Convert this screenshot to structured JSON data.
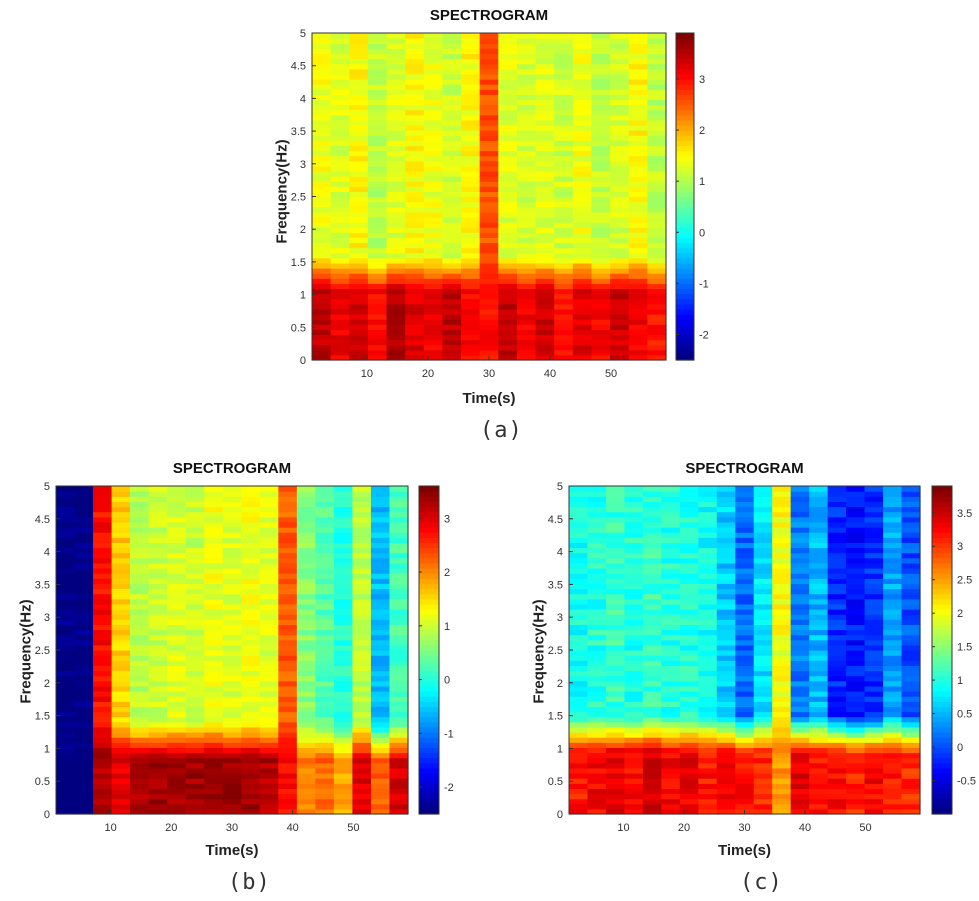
{
  "chart_data": [
    {
      "id": "a",
      "type": "heatmap",
      "title": "SPECTROGRAM",
      "xlabel": "Time(s)",
      "ylabel": "Frequency(Hz)",
      "caption": "(a)",
      "xlim": [
        1,
        59
      ],
      "ylim": [
        0,
        5
      ],
      "xticks": [
        10,
        20,
        30,
        40,
        50
      ],
      "yticks": [
        0,
        0.5,
        1,
        1.5,
        2,
        2.5,
        3,
        3.5,
        4,
        4.5,
        5
      ],
      "colorbar": {
        "range": [
          -2.5,
          3.9
        ],
        "ticks": [
          -2,
          -1,
          0,
          1,
          2,
          3
        ]
      },
      "time_bins": 19,
      "column_high_freq_values": [
        1.4,
        1.3,
        1.5,
        1.1,
        1.3,
        1.5,
        1.4,
        1.2,
        1.5,
        2.6,
        1.3,
        1.2,
        1.3,
        1.2,
        1.4,
        1.1,
        1.2,
        1.5,
        1.1
      ],
      "column_low_freq_values": [
        3.7,
        3.4,
        3.6,
        3.3,
        3.8,
        3.5,
        3.4,
        3.7,
        3.3,
        3.2,
        3.7,
        3.4,
        3.6,
        3.2,
        3.5,
        3.3,
        3.6,
        3.4,
        3.2
      ],
      "low_freq_cutoff": 1.0
    },
    {
      "id": "b",
      "type": "heatmap",
      "title": "SPECTROGRAM",
      "xlabel": "Time(s)",
      "ylabel": "Frequency(Hz)",
      "caption": "(b)",
      "xlim": [
        1,
        59
      ],
      "ylim": [
        0,
        5
      ],
      "xticks": [
        10,
        20,
        30,
        40,
        50
      ],
      "yticks": [
        0,
        0.5,
        1,
        1.5,
        2,
        2.5,
        3,
        3.5,
        4,
        4.5,
        5
      ],
      "colorbar": {
        "range": [
          -2.5,
          3.6
        ],
        "ticks": [
          -2,
          -1,
          0,
          1,
          2,
          3
        ]
      },
      "time_bins": 19,
      "column_high_freq_values": [
        -2.5,
        -2.5,
        2.8,
        1.6,
        0.9,
        1.0,
        1.1,
        1.0,
        1.2,
        1.1,
        1.2,
        1.1,
        2.3,
        0.6,
        0.3,
        0.0,
        0.9,
        -0.6,
        0.2
      ],
      "column_low_freq_values": [
        -2.5,
        -2.5,
        3.5,
        3.2,
        3.5,
        3.6,
        3.6,
        3.6,
        3.6,
        3.6,
        3.6,
        3.5,
        3.0,
        2.2,
        2.4,
        2.0,
        3.2,
        2.5,
        3.3
      ],
      "low_freq_cutoff": 0.8
    },
    {
      "id": "c",
      "type": "heatmap",
      "title": "SPECTROGRAM",
      "xlabel": "Time(s)",
      "ylabel": "Frequency(Hz)",
      "caption": "(c)",
      "xlim": [
        1,
        59
      ],
      "ylim": [
        0,
        5
      ],
      "xticks": [
        10,
        20,
        30,
        40,
        50
      ],
      "yticks": [
        0,
        0.5,
        1,
        1.5,
        2,
        2.5,
        3,
        3.5,
        4,
        4.5,
        5
      ],
      "colorbar": {
        "range": [
          -1.0,
          3.9
        ],
        "ticks": [
          -0.5,
          0,
          0.5,
          1,
          1.5,
          2,
          2.5,
          3,
          3.5
        ]
      },
      "time_bins": 19,
      "column_high_freq_values": [
        0.9,
        1.0,
        1.1,
        1.0,
        1.1,
        1.0,
        1.0,
        0.9,
        0.6,
        0.1,
        0.7,
        2.0,
        0.2,
        0.5,
        -0.2,
        -0.3,
        -0.2,
        0.4,
        0.0
      ],
      "column_low_freq_values": [
        3.4,
        3.5,
        3.6,
        3.5,
        3.7,
        3.5,
        3.6,
        3.4,
        3.5,
        3.4,
        3.3,
        2.8,
        3.6,
        3.4,
        3.5,
        3.3,
        3.5,
        3.4,
        3.3
      ],
      "low_freq_cutoff": 0.9
    }
  ]
}
